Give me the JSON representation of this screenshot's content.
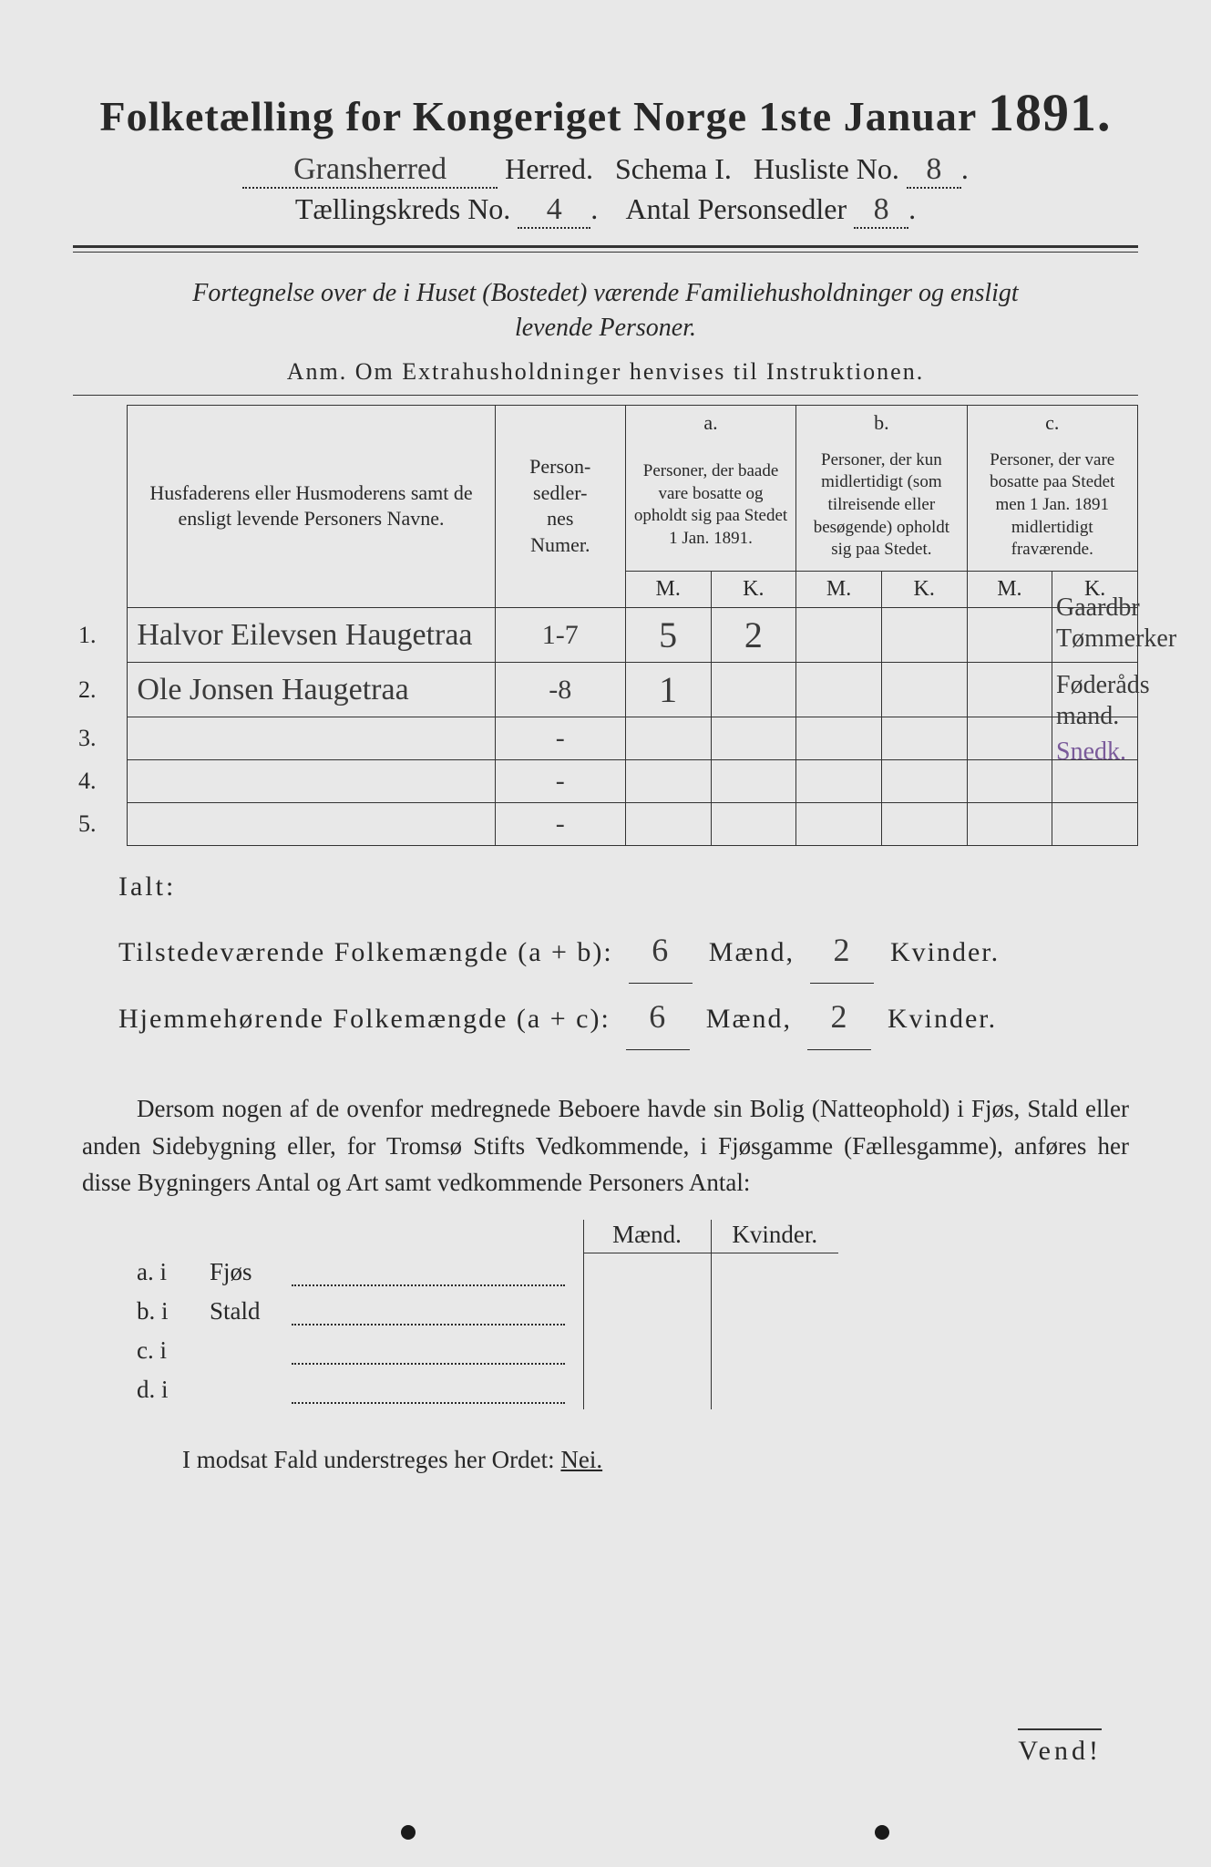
{
  "title_main": "Folketælling for Kongeriget Norge 1ste Januar",
  "title_year": "1891.",
  "herred_hand": "Gransherred",
  "line2_herred": "Herred.",
  "line2_schema": "Schema I.",
  "line2_husliste": "Husliste No.",
  "husliste_no": "8",
  "line3_kreds": "Tællingskreds No.",
  "kreds_no": "4",
  "line3_antal": "Antal Personsedler",
  "antal_sedler": "8",
  "subtitle_a": "Fortegnelse over de i Huset (Bostedet) værende Familiehusholdninger og ensligt",
  "subtitle_b": "levende Personer.",
  "anm": "Anm.   Om Extrahusholdninger henvises til Instruktionen.",
  "hdr_name": "Husfaderens eller Husmoderens samt de ensligt levende Personers Navne.",
  "hdr_pnum": "Person-\nsedler-\nnes\nNumer.",
  "hdr_a_top": "a.",
  "hdr_a": "Personer, der baade vare bosatte og opholdt sig paa Stedet 1 Jan. 1891.",
  "hdr_b_top": "b.",
  "hdr_b": "Personer, der kun midlertidigt (som tilreisende eller besøgende) opholdt sig paa Stedet.",
  "hdr_c_top": "c.",
  "hdr_c": "Personer, der vare bosatte paa Stedet men 1 Jan. 1891 midlertidigt fraværende.",
  "M": "M.",
  "K": "K.",
  "rows": [
    {
      "n": "1.",
      "name": "Halvor Eilevsen Haugetraa",
      "pnum": "1-7",
      "aM": "5",
      "aK": "2",
      "bM": "",
      "bK": "",
      "cM": "",
      "cK": ""
    },
    {
      "n": "2.",
      "name": "Ole Jonsen Haugetraa",
      "pnum": "-8",
      "aM": "1",
      "aK": "",
      "bM": "",
      "bK": "",
      "cM": "",
      "cK": ""
    },
    {
      "n": "3.",
      "name": "",
      "pnum": "-",
      "aM": "",
      "aK": "",
      "bM": "",
      "bK": "",
      "cM": "",
      "cK": ""
    },
    {
      "n": "4.",
      "name": "",
      "pnum": "-",
      "aM": "",
      "aK": "",
      "bM": "",
      "bK": "",
      "cM": "",
      "cK": ""
    },
    {
      "n": "5.",
      "name": "",
      "pnum": "-",
      "aM": "",
      "aK": "",
      "bM": "",
      "bK": "",
      "cM": "",
      "cK": ""
    }
  ],
  "margin1a": "Gaardbr",
  "margin1b": "Tømmerker",
  "margin2a": "Føderåds",
  "margin2b": "mand.",
  "margin3": "Snedk.",
  "ialt": "Ialt:",
  "tot1_label": "Tilstedeværende Folkemængde (a + b):",
  "tot2_label": "Hjemmehørende Folkemængde (a + c):",
  "tot_m": "Mænd,",
  "tot_k": "Kvinder.",
  "tot1_m": "6",
  "tot1_k": "2",
  "tot2_m": "6",
  "tot2_k": "2",
  "para": "Dersom nogen af de ovenfor medregnede Beboere havde sin Bolig (Natteophold) i Fjøs, Stald eller anden Sidebygning eller, for Tromsø Stifts Vedkommende, i Fjøsgamme (Fællesgamme), anføres her disse Bygningers Antal og Art samt vedkommende Personers Antal:",
  "bygn_hdr_m": "Mænd.",
  "bygn_hdr_k": "Kvinder.",
  "bygn": [
    {
      "l": "a.  i",
      "t": "Fjøs"
    },
    {
      "l": "b.  i",
      "t": "Stald"
    },
    {
      "l": "c.  i",
      "t": ""
    },
    {
      "l": "d.  i",
      "t": ""
    }
  ],
  "nei_a": "I modsat Fald understreges her Ordet:",
  "nei_b": "Nei.",
  "vend": "Vend!"
}
